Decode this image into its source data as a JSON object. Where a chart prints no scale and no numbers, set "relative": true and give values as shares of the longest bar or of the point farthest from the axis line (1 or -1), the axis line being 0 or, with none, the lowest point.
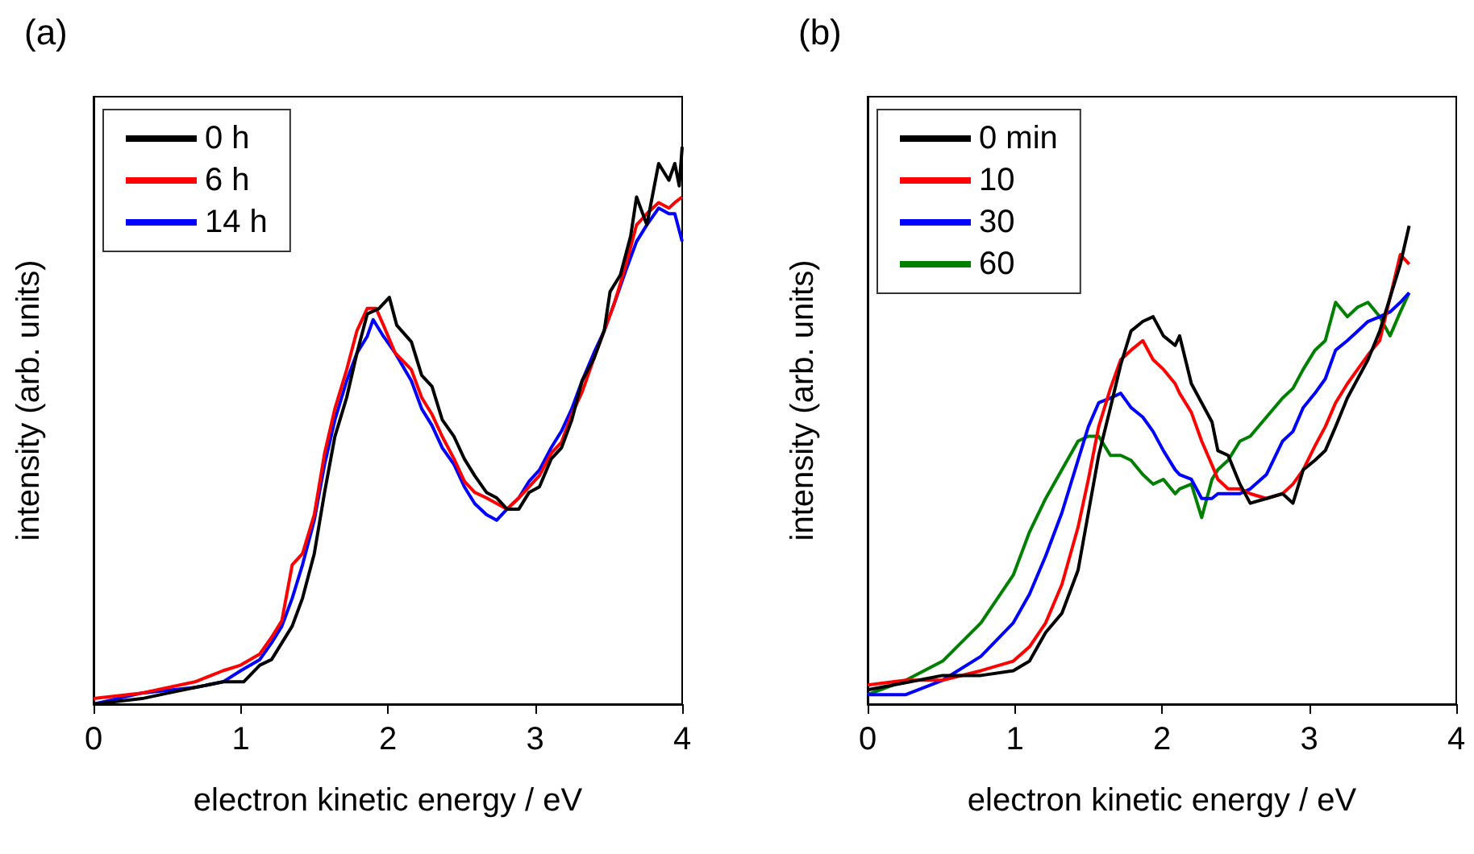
{
  "chart_data": [
    {
      "type": "line",
      "title": "(a)",
      "xlabel": "electron kinetic energy / eV",
      "ylabel": "intensity (arb. units)",
      "relative": true,
      "xlim": [
        0,
        4
      ],
      "xticks": [
        0,
        1,
        2,
        3,
        4
      ],
      "legend": "top left",
      "series": [
        {
          "name": "0 h",
          "color": "#000000",
          "x": [
            0,
            0.33,
            0.51,
            0.69,
            0.88,
            1.02,
            1.13,
            1.21,
            1.28,
            1.35,
            1.42,
            1.5,
            1.57,
            1.64,
            1.72,
            1.79,
            1.86,
            1.94,
            2.01,
            2.06,
            2.16,
            2.23,
            2.3,
            2.37,
            2.45,
            2.52,
            2.59,
            2.67,
            2.74,
            2.81,
            2.89,
            2.96,
            3.03,
            3.11,
            3.18,
            3.25,
            3.32,
            3.4,
            3.47,
            3.51,
            3.58,
            3.65,
            3.69,
            3.76,
            3.84,
            3.91,
            3.95,
            3.98,
            4.0
          ],
          "values": [
            0,
            0.01,
            0.02,
            0.03,
            0.04,
            0.04,
            0.07,
            0.08,
            0.11,
            0.14,
            0.19,
            0.27,
            0.38,
            0.48,
            0.55,
            0.63,
            0.7,
            0.71,
            0.73,
            0.68,
            0.65,
            0.59,
            0.57,
            0.51,
            0.48,
            0.44,
            0.41,
            0.38,
            0.37,
            0.35,
            0.35,
            0.38,
            0.39,
            0.44,
            0.46,
            0.51,
            0.58,
            0.62,
            0.67,
            0.74,
            0.77,
            0.84,
            0.91,
            0.86,
            0.97,
            0.94,
            0.97,
            0.93,
            1.0
          ]
        },
        {
          "name": "6 h",
          "color": "#ff0000",
          "x": [
            0,
            0.33,
            0.69,
            0.88,
            1.0,
            1.13,
            1.21,
            1.28,
            1.35,
            1.42,
            1.5,
            1.57,
            1.64,
            1.72,
            1.79,
            1.86,
            1.92,
            1.97,
            2.05,
            2.16,
            2.23,
            2.3,
            2.37,
            2.45,
            2.52,
            2.59,
            2.67,
            2.74,
            2.81,
            2.89,
            2.96,
            3.03,
            3.11,
            3.18,
            3.25,
            3.32,
            3.4,
            3.47,
            3.54,
            3.62,
            3.69,
            3.76,
            3.84,
            3.91,
            3.95,
            4.0
          ],
          "values": [
            0.01,
            0.02,
            0.04,
            0.06,
            0.07,
            0.09,
            0.12,
            0.15,
            0.25,
            0.27,
            0.34,
            0.45,
            0.53,
            0.6,
            0.67,
            0.71,
            0.71,
            0.68,
            0.63,
            0.6,
            0.55,
            0.52,
            0.48,
            0.44,
            0.4,
            0.38,
            0.37,
            0.36,
            0.35,
            0.37,
            0.39,
            0.41,
            0.45,
            0.47,
            0.52,
            0.56,
            0.62,
            0.67,
            0.72,
            0.79,
            0.86,
            0.88,
            0.9,
            0.89,
            0.9,
            0.91
          ]
        },
        {
          "name": "14 h",
          "color": "#0000ff",
          "x": [
            0,
            0.33,
            0.69,
            0.88,
            1.0,
            1.13,
            1.21,
            1.28,
            1.35,
            1.42,
            1.5,
            1.57,
            1.64,
            1.72,
            1.79,
            1.86,
            1.9,
            1.97,
            2.05,
            2.16,
            2.23,
            2.3,
            2.37,
            2.45,
            2.52,
            2.59,
            2.67,
            2.74,
            2.81,
            2.89,
            2.96,
            3.03,
            3.11,
            3.18,
            3.25,
            3.32,
            3.4,
            3.47,
            3.54,
            3.62,
            3.69,
            3.76,
            3.84,
            3.91,
            3.95,
            4.0
          ],
          "values": [
            0,
            0.02,
            0.03,
            0.04,
            0.06,
            0.08,
            0.11,
            0.14,
            0.19,
            0.25,
            0.33,
            0.43,
            0.51,
            0.58,
            0.63,
            0.66,
            0.69,
            0.66,
            0.63,
            0.58,
            0.53,
            0.5,
            0.46,
            0.43,
            0.39,
            0.36,
            0.34,
            0.33,
            0.35,
            0.37,
            0.4,
            0.42,
            0.46,
            0.49,
            0.53,
            0.58,
            0.63,
            0.67,
            0.72,
            0.78,
            0.83,
            0.86,
            0.89,
            0.88,
            0.88,
            0.83
          ]
        }
      ]
    },
    {
      "type": "line",
      "title": "(b)",
      "xlabel": "electron kinetic energy / eV",
      "ylabel": "intensity (arb. units)",
      "relative": true,
      "xlim": [
        0,
        4
      ],
      "xticks": [
        0,
        1,
        2,
        3,
        4
      ],
      "legend": "top left",
      "x": [
        0,
        0.26,
        0.51,
        0.77,
        0.99,
        1.1,
        1.21,
        1.32,
        1.43,
        1.5,
        1.57,
        1.65,
        1.72,
        1.79,
        1.87,
        1.94,
        2.01,
        2.09,
        2.12,
        2.2,
        2.27,
        2.34,
        2.38,
        2.45,
        2.53,
        2.6,
        2.71,
        2.82,
        2.89,
        2.96,
        3.04,
        3.11,
        3.18,
        3.26,
        3.33,
        3.4,
        3.48,
        3.55,
        3.62,
        3.68
      ],
      "series": [
        {
          "name": "0 min",
          "color": "#000000",
          "values": [
            0.03,
            0.045,
            0.06,
            0.06,
            0.07,
            0.09,
            0.15,
            0.19,
            0.28,
            0.4,
            0.52,
            0.62,
            0.71,
            0.78,
            0.8,
            0.81,
            0.77,
            0.75,
            0.77,
            0.67,
            0.63,
            0.59,
            0.53,
            0.52,
            0.46,
            0.42,
            0.43,
            0.44,
            0.42,
            0.49,
            0.51,
            0.53,
            0.58,
            0.64,
            0.68,
            0.72,
            0.78,
            0.85,
            0.92,
            1.0
          ]
        },
        {
          "name": "10",
          "color": "#ff0000",
          "values": [
            0.04,
            0.05,
            0.05,
            0.07,
            0.09,
            0.12,
            0.17,
            0.25,
            0.37,
            0.47,
            0.58,
            0.66,
            0.72,
            0.74,
            0.76,
            0.72,
            0.7,
            0.67,
            0.65,
            0.61,
            0.55,
            0.5,
            0.47,
            0.45,
            0.45,
            0.44,
            0.43,
            0.44,
            0.46,
            0.49,
            0.54,
            0.58,
            0.63,
            0.67,
            0.7,
            0.73,
            0.76,
            0.85,
            0.94,
            0.92
          ]
        },
        {
          "name": "30",
          "color": "#0000ff",
          "values": [
            0.02,
            0.02,
            0.05,
            0.1,
            0.17,
            0.23,
            0.31,
            0.4,
            0.51,
            0.58,
            0.63,
            0.64,
            0.65,
            0.62,
            0.6,
            0.57,
            0.53,
            0.49,
            0.48,
            0.47,
            0.43,
            0.43,
            0.44,
            0.44,
            0.44,
            0.45,
            0.48,
            0.55,
            0.57,
            0.62,
            0.65,
            0.68,
            0.74,
            0.76,
            0.78,
            0.8,
            0.81,
            0.82,
            0.84,
            0.86
          ]
        },
        {
          "name": "60",
          "color": "#008000",
          "values": [
            0.02,
            0.05,
            0.09,
            0.17,
            0.27,
            0.36,
            0.43,
            0.49,
            0.55,
            0.56,
            0.56,
            0.52,
            0.52,
            0.51,
            0.48,
            0.46,
            0.47,
            0.44,
            0.45,
            0.46,
            0.39,
            0.47,
            0.49,
            0.51,
            0.55,
            0.56,
            0.6,
            0.64,
            0.66,
            0.7,
            0.74,
            0.76,
            0.84,
            0.81,
            0.83,
            0.84,
            0.81,
            0.77,
            0.82,
            0.86
          ]
        }
      ]
    }
  ]
}
